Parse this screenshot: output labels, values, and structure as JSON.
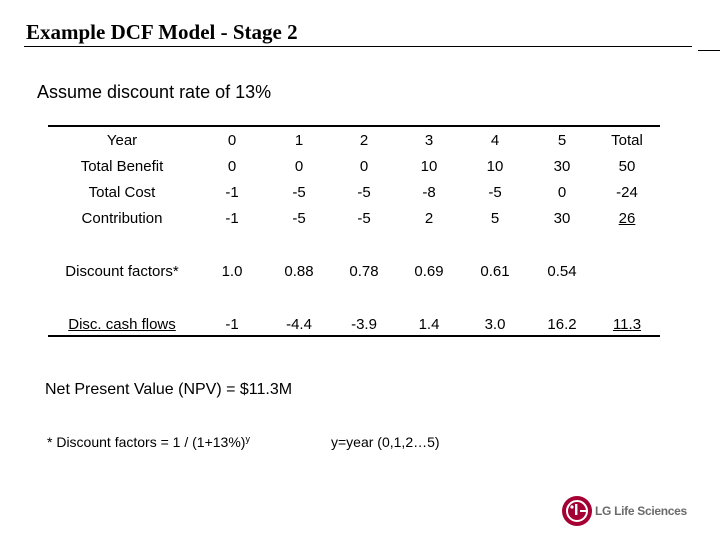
{
  "title": "Example DCF Model - Stage 2",
  "subtitle": "Assume discount rate of 13%",
  "table": {
    "header": [
      "Year",
      "0",
      "1",
      "2",
      "3",
      "4",
      "5",
      "Total"
    ],
    "rows": [
      [
        "Total Benefit",
        "0",
        "0",
        "0",
        "10",
        "10",
        "30",
        "50"
      ],
      [
        "Total Cost",
        "-1",
        "-5",
        "-5",
        "-8",
        "-5",
        "0",
        "-24"
      ],
      [
        "Contribution",
        "-1",
        "-5",
        "-5",
        "2",
        "5",
        "30",
        "26"
      ],
      [
        "Discount factors*",
        "1.0",
        "0.88",
        "0.78",
        "0.69",
        "0.61",
        "0.54",
        ""
      ],
      [
        "Disc. cash flows",
        "-1",
        "-4.4",
        "-3.9",
        "1.4",
        "3.0",
        "16.2",
        "11.3"
      ]
    ]
  },
  "npv": "Net Present Value (NPV) = $11.3M",
  "footnote": {
    "text": "* Discount factors  = 1 / (1+13%)",
    "superscript": "y",
    "year_note": "y=year (0,1,2…5)"
  },
  "logo": {
    "brand": "LG Life Sciences",
    "mark": "LG",
    "color": "#A50034"
  }
}
